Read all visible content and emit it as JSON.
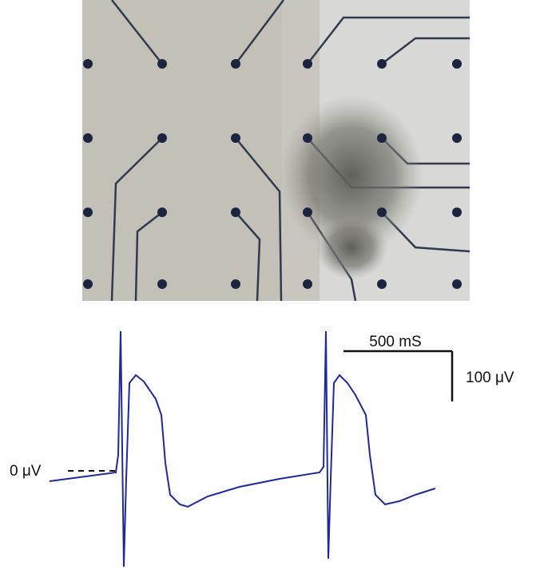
{
  "scale_bar": {
    "time_label": "500 mS",
    "voltage_label": "100 μV"
  },
  "baseline_label": "0 μV"
}
